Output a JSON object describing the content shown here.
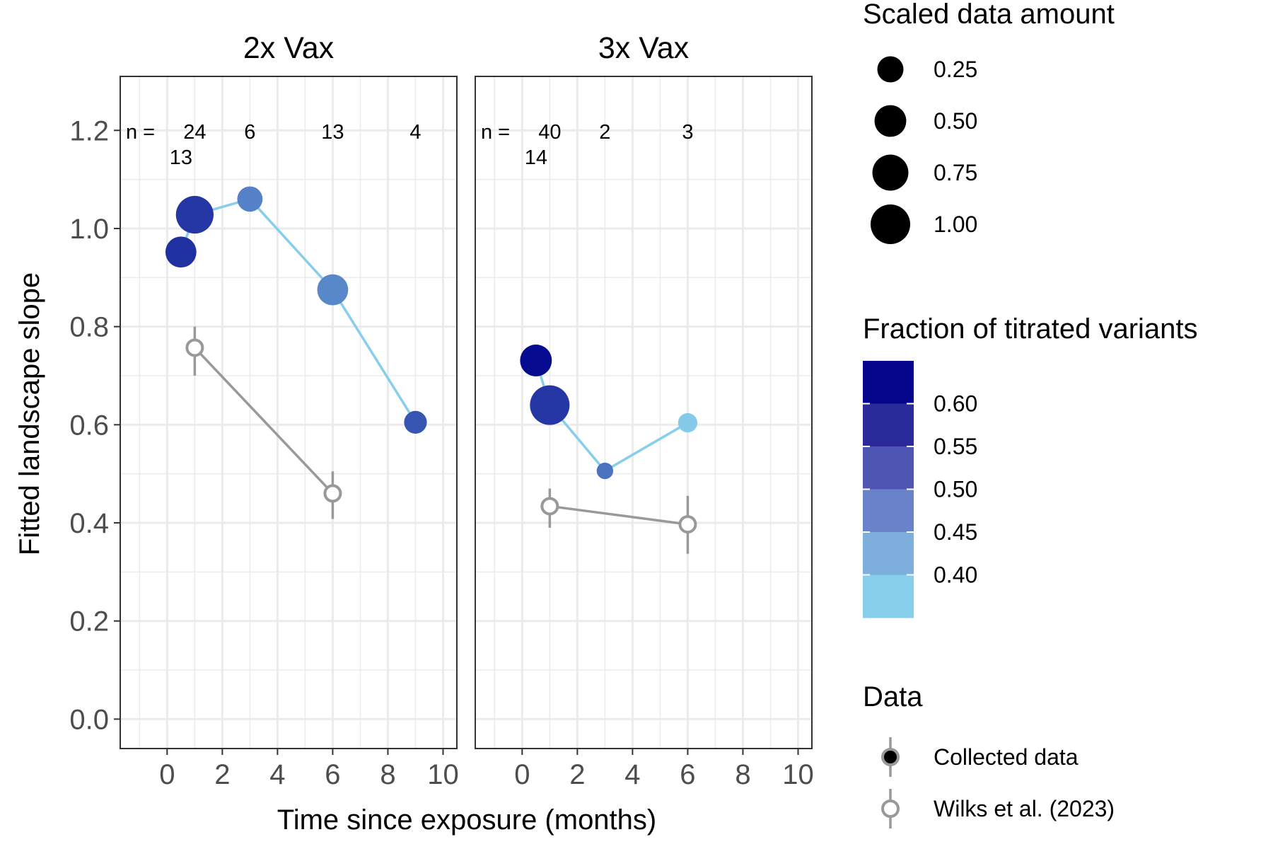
{
  "chart_data": {
    "type": "scatter",
    "xlabel": "Time since exposure (months)",
    "ylabel": "Fitted landscape slope",
    "xlim": [
      -1.7,
      10.5
    ],
    "ylim": [
      -0.06,
      1.31
    ],
    "x_ticks": [
      0,
      2,
      4,
      6,
      8,
      10
    ],
    "y_ticks": [
      0.0,
      0.2,
      0.4,
      0.6,
      0.8,
      1.0,
      1.2
    ],
    "x_tick_labels": [
      "0",
      "2",
      "4",
      "6",
      "8",
      "10"
    ],
    "y_tick_labels": [
      "0.0",
      "0.2",
      "0.4",
      "0.6",
      "0.8",
      "1.0",
      "1.2"
    ],
    "grid": true,
    "legend_position": "right",
    "collected_line_color": "#87CEEB",
    "wilks_color": "#999999",
    "color_scale": {
      "min": 0.375,
      "max": 0.655,
      "low": "#87CEEB",
      "high": "#00008B"
    },
    "panels": [
      {
        "title": "2x Vax",
        "n_prefix": "n =",
        "n_labels": [
          {
            "x": 0.5,
            "row": 2,
            "text": "13"
          },
          {
            "x": 1,
            "row": 1,
            "text": "24"
          },
          {
            "x": 3,
            "row": 1,
            "text": "6"
          },
          {
            "x": 6,
            "row": 1,
            "text": "13"
          },
          {
            "x": 9,
            "row": 1,
            "text": "4"
          }
        ],
        "collected": [
          {
            "x": 0.5,
            "y": 0.952,
            "size": 0.46,
            "fraction": 0.59
          },
          {
            "x": 1,
            "y": 1.028,
            "size": 0.86,
            "fraction": 0.58
          },
          {
            "x": 3,
            "y": 1.06,
            "size": 0.22,
            "fraction": 0.48
          },
          {
            "x": 6,
            "y": 0.875,
            "size": 0.46,
            "fraction": 0.47
          },
          {
            "x": 9,
            "y": 0.605,
            "size": 0.14,
            "fraction": 0.54
          }
        ],
        "wilks": [
          {
            "x": 1,
            "y": 0.757,
            "ymin": 0.7,
            "ymax": 0.8
          },
          {
            "x": 6,
            "y": 0.46,
            "ymin": 0.408,
            "ymax": 0.505
          }
        ]
      },
      {
        "title": "3x Vax",
        "n_prefix": "n =",
        "n_labels": [
          {
            "x": 0.5,
            "row": 2,
            "text": "14"
          },
          {
            "x": 1,
            "row": 1,
            "text": "40"
          },
          {
            "x": 3,
            "row": 1,
            "text": "2"
          },
          {
            "x": 6,
            "row": 1,
            "text": "3"
          }
        ],
        "collected": [
          {
            "x": 0.5,
            "y": 0.731,
            "size": 0.5,
            "fraction": 0.64
          },
          {
            "x": 1,
            "y": 0.64,
            "size": 1.0,
            "fraction": 0.58
          },
          {
            "x": 3,
            "y": 0.506,
            "size": 0.02,
            "fraction": 0.5
          },
          {
            "x": 6,
            "y": 0.604,
            "size": 0.06,
            "fraction": 0.38
          }
        ],
        "wilks": [
          {
            "x": 1,
            "y": 0.434,
            "ymin": 0.39,
            "ymax": 0.47
          },
          {
            "x": 6,
            "y": 0.397,
            "ymin": 0.337,
            "ymax": 0.455
          }
        ]
      }
    ],
    "legend_size": {
      "title": "Scaled data amount",
      "entries": [
        {
          "value": 0.25,
          "label": "0.25"
        },
        {
          "value": 0.5,
          "label": "0.50"
        },
        {
          "value": 0.75,
          "label": "0.75"
        },
        {
          "value": 1.0,
          "label": "1.00"
        }
      ]
    },
    "legend_color": {
      "title": "Fraction of titrated variants",
      "bins": [
        "#05058C",
        "#2A2A9A",
        "#4F55B3",
        "#6A82CA",
        "#7EAEDB",
        "#87CEEB"
      ],
      "labels": [
        "0.60",
        "0.55",
        "0.50",
        "0.45",
        "0.40"
      ]
    },
    "legend_data": {
      "title": "Data",
      "entries": [
        {
          "label": "Collected data",
          "kind": "collected"
        },
        {
          "label": "Wilks et al. (2023)",
          "kind": "wilks"
        }
      ]
    }
  }
}
